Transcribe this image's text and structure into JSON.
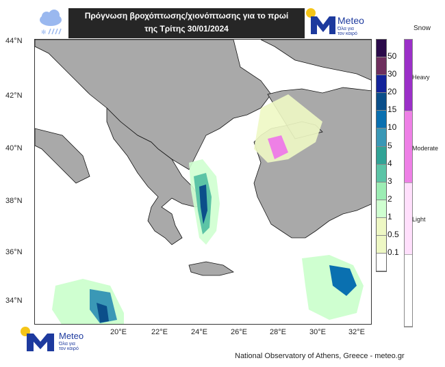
{
  "header": {
    "title_line1": "Πρόγνωση βροχόπτωσης/χιονόπτωσης για το πρωί",
    "title_line2": "της Τρίτης 30/01/2024",
    "icon": "rain-snow-cloud-icon"
  },
  "logo": {
    "name": "Meteo",
    "tagline_line1": "Όλα για",
    "tagline_line2": "τον καιρό"
  },
  "map": {
    "lat_labels": [
      "44°N",
      "42°N",
      "40°N",
      "38°N",
      "36°N",
      "34°N"
    ],
    "lon_labels": [
      "20°E",
      "22°E",
      "24°E",
      "26°E",
      "28°E",
      "30°E",
      "32°E"
    ],
    "land_color": "#a9a9a9",
    "sea_color": "#ffffff"
  },
  "precip_legend": {
    "labels": [
      "50",
      "30",
      "20",
      "15",
      "10",
      "5",
      "4",
      "3",
      "2",
      "1",
      "0.5",
      "0.1"
    ],
    "colors": [
      "#2a0a4a",
      "#6e2f5e",
      "#13239a",
      "#0b4f8a",
      "#0a70b0",
      "#3a98b6",
      "#31a396",
      "#5cc4a6",
      "#9cedb4",
      "#cfffd0",
      "#eef8c4",
      "#eef8c4",
      "#ffffff"
    ]
  },
  "snow_legend": {
    "title": "Snow",
    "labels": [
      "Heavy",
      "Moderate",
      "Light"
    ],
    "colors": [
      "#9b30c8",
      "#ee80e6",
      "#ffdffc",
      "#ffffff"
    ]
  },
  "credit": "National Observatory of Athens, Greece - meteo.gr"
}
